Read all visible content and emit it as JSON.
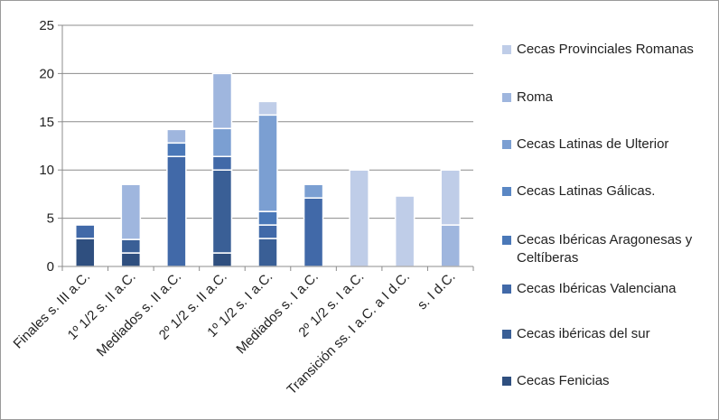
{
  "chart_data": {
    "type": "bar",
    "stacked": true,
    "title": "",
    "xlabel": "",
    "ylabel": "",
    "ylim": [
      0,
      25
    ],
    "yticks": [
      0,
      5,
      10,
      15,
      20,
      25
    ],
    "grid": "horizontal",
    "legend_position": "right",
    "categories": [
      "Finales s. III a.C.",
      "1º 1/2 s. II a.C.",
      "Mediados s. II a.C.",
      "2º 1/2 s. II a.C.",
      "1º 1/2 s. I a.C.",
      "Mediados s. I a.C.",
      "2º 1/2 s. I a.C.",
      "Transición ss. I a.C. a I d.C.",
      "s. I d.C."
    ],
    "series": [
      {
        "name": "Cecas Fenicias",
        "color": "#2f4f7f",
        "values": [
          2.9,
          1.4,
          0,
          1.4,
          0,
          0,
          0,
          0,
          0
        ]
      },
      {
        "name": "Cecas ibéricas del sur",
        "color": "#3a5f96",
        "values": [
          0,
          1.4,
          0,
          8.6,
          2.9,
          0,
          0,
          0,
          0
        ]
      },
      {
        "name": "Cecas Ibéricas Valenciana",
        "color": "#4169a8",
        "values": [
          1.4,
          0,
          11.4,
          1.4,
          1.4,
          7.1,
          0,
          0,
          0
        ]
      },
      {
        "name": "Cecas Ibéricas Aragonesas y Celtíberas",
        "color": "#4a78b8",
        "values": [
          0,
          0,
          1.4,
          0,
          1.4,
          0,
          0,
          0,
          0
        ]
      },
      {
        "name": "Cecas Latinas Gálicas.",
        "color": "#5a87c4",
        "values": [
          0,
          0,
          0,
          0,
          0,
          0,
          0,
          0,
          0
        ]
      },
      {
        "name": "Cecas Latinas de Ulterior",
        "color": "#7b9fd2",
        "values": [
          0,
          0,
          0,
          2.9,
          10.0,
          1.4,
          0,
          0,
          0
        ]
      },
      {
        "name": "Roma",
        "color": "#9fb6de",
        "values": [
          0,
          5.7,
          1.4,
          5.7,
          0,
          0,
          0,
          0,
          4.3
        ]
      },
      {
        "name": "Cecas Provinciales Romanas",
        "color": "#bfcde8",
        "values": [
          0,
          0,
          0,
          0,
          1.4,
          0,
          10.0,
          7.3,
          5.7
        ]
      }
    ]
  }
}
